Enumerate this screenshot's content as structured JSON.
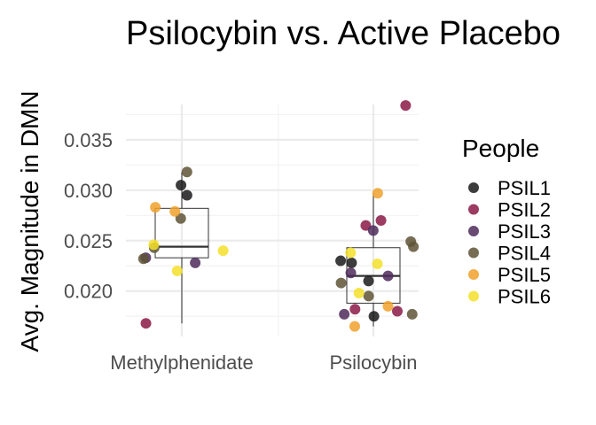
{
  "chart_data": {
    "type": "scatter",
    "title": "Psilocybin vs. Active Placebo",
    "xlabel": "",
    "ylabel": "Avg. Magnitude in DMN",
    "categories": [
      "Methylphenidate",
      "Psilocybin"
    ],
    "y_ticks": [
      {
        "value": 0.02,
        "label": "0.020"
      },
      {
        "value": 0.025,
        "label": "0.025"
      },
      {
        "value": 0.03,
        "label": "0.030"
      },
      {
        "value": 0.035,
        "label": "0.035"
      }
    ],
    "ylim": [
      0.0155,
      0.0392
    ],
    "grid": true,
    "legend": {
      "title": "People",
      "placement": "right"
    },
    "series": [
      {
        "name": "PSIL1",
        "color": "#1a1a1a",
        "points": [
          {
            "category": "Methylphenidate",
            "y": 0.0305
          },
          {
            "category": "Methylphenidate",
            "y": 0.0295
          },
          {
            "category": "Psilocybin",
            "y": 0.023
          },
          {
            "category": "Psilocybin",
            "y": 0.0228
          },
          {
            "category": "Psilocybin",
            "y": 0.021
          },
          {
            "category": "Psilocybin",
            "y": 0.0175
          }
        ]
      },
      {
        "name": "PSIL2",
        "color": "#8b1a47",
        "points": [
          {
            "category": "Methylphenidate",
            "y": 0.0168
          },
          {
            "category": "Psilocybin",
            "y": 0.0384
          },
          {
            "category": "Psilocybin",
            "y": 0.027
          },
          {
            "category": "Psilocybin",
            "y": 0.0265
          },
          {
            "category": "Psilocybin",
            "y": 0.0182
          },
          {
            "category": "Psilocybin",
            "y": 0.018
          }
        ]
      },
      {
        "name": "PSIL3",
        "color": "#4e2a5a",
        "points": [
          {
            "category": "Methylphenidate",
            "y": 0.0228
          },
          {
            "category": "Methylphenidate",
            "y": 0.0233
          },
          {
            "category": "Psilocybin",
            "y": 0.026
          },
          {
            "category": "Psilocybin",
            "y": 0.0218
          },
          {
            "category": "Psilocybin",
            "y": 0.0215
          },
          {
            "category": "Psilocybin",
            "y": 0.0177
          }
        ]
      },
      {
        "name": "PSIL4",
        "color": "#5e5436",
        "points": [
          {
            "category": "Methylphenidate",
            "y": 0.0318
          },
          {
            "category": "Methylphenidate",
            "y": 0.0272
          },
          {
            "category": "Methylphenidate",
            "y": 0.0243
          },
          {
            "category": "Methylphenidate",
            "y": 0.0232
          },
          {
            "category": "Psilocybin",
            "y": 0.0249
          },
          {
            "category": "Psilocybin",
            "y": 0.0244
          },
          {
            "category": "Psilocybin",
            "y": 0.0208
          },
          {
            "category": "Psilocybin",
            "y": 0.0195
          },
          {
            "category": "Psilocybin",
            "y": 0.0177
          }
        ]
      },
      {
        "name": "PSIL5",
        "color": "#f0a12c",
        "points": [
          {
            "category": "Methylphenidate",
            "y": 0.0283
          },
          {
            "category": "Methylphenidate",
            "y": 0.0279
          },
          {
            "category": "Psilocybin",
            "y": 0.0297
          },
          {
            "category": "Psilocybin",
            "y": 0.0185
          },
          {
            "category": "Psilocybin",
            "y": 0.0165
          }
        ]
      },
      {
        "name": "PSIL6",
        "color": "#f5e02a",
        "points": [
          {
            "category": "Methylphenidate",
            "y": 0.0246
          },
          {
            "category": "Methylphenidate",
            "y": 0.024
          },
          {
            "category": "Methylphenidate",
            "y": 0.022
          },
          {
            "category": "Psilocybin",
            "y": 0.0238
          },
          {
            "category": "Psilocybin",
            "y": 0.0227
          },
          {
            "category": "Psilocybin",
            "y": 0.0198
          }
        ]
      }
    ],
    "boxplots": [
      {
        "category": "Methylphenidate",
        "min": 0.0168,
        "q1": 0.0233,
        "median": 0.0244,
        "q3": 0.0282,
        "max": 0.0318
      },
      {
        "category": "Psilocybin",
        "min": 0.0165,
        "q1": 0.0188,
        "median": 0.0215,
        "q3": 0.0243,
        "max": 0.0297
      }
    ]
  }
}
